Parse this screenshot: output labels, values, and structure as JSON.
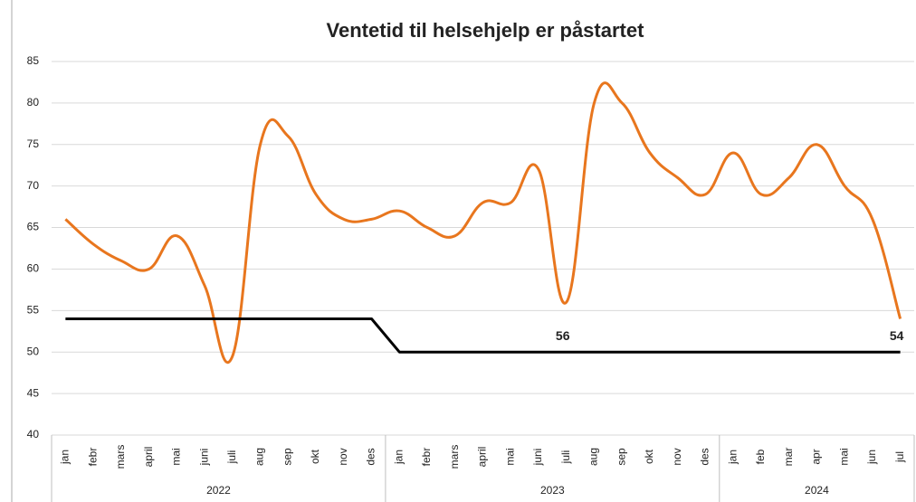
{
  "chart_data": {
    "type": "line",
    "title": "Ventetid til helsehjelp er påstartet",
    "category_groups": [
      {
        "label": "2022",
        "categories": [
          "jan",
          "febr",
          "mars",
          "april",
          "mai",
          "juni",
          "juli",
          "aug",
          "sep",
          "okt",
          "nov",
          "des"
        ]
      },
      {
        "label": "2023",
        "categories": [
          "jan",
          "febr",
          "mars",
          "april",
          "mai",
          "juni",
          "juli",
          "aug",
          "sep",
          "okt",
          "nov",
          "des"
        ]
      },
      {
        "label": "2024",
        "categories": [
          "jan",
          "feb",
          "mar",
          "apr",
          "mai",
          "jun",
          "jul"
        ]
      }
    ],
    "series": [
      {
        "color": "#e8761e",
        "values": [
          66,
          63,
          61,
          60,
          64,
          58,
          49.5,
          75,
          76,
          69,
          66,
          66,
          67,
          65,
          64,
          68,
          68,
          72,
          56,
          80,
          80,
          74,
          71,
          69,
          74,
          69,
          71,
          75,
          70,
          66,
          54
        ],
        "value_labels": [
          null,
          null,
          null,
          null,
          null,
          null,
          null,
          null,
          null,
          null,
          null,
          null,
          null,
          null,
          null,
          null,
          null,
          null,
          "56",
          null,
          null,
          null,
          null,
          null,
          null,
          null,
          null,
          null,
          null,
          null,
          "54"
        ]
      },
      {
        "color": "#000000",
        "values": [
          54,
          54,
          54,
          54,
          54,
          54,
          54,
          54,
          54,
          54,
          54,
          54,
          50,
          50,
          50,
          50,
          50,
          50,
          50,
          50,
          50,
          50,
          50,
          50,
          50,
          50,
          50,
          50,
          50,
          50,
          50
        ]
      }
    ],
    "ylim": [
      40,
      85
    ],
    "yticks": [
      40,
      45,
      50,
      55,
      60,
      65,
      70,
      75,
      80,
      85
    ],
    "grid": true
  }
}
